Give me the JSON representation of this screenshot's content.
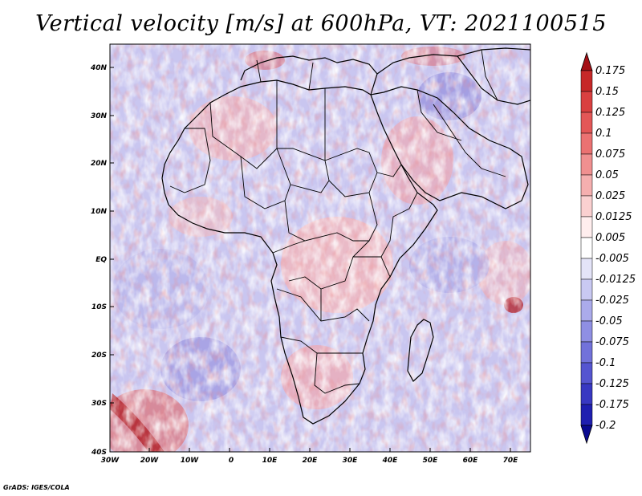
{
  "title": "Vertical velocity [m/s] at 600hPa, VT: 2021100515",
  "credit": "GrADS: IGES/COLA",
  "map": {
    "lat_labels": [
      "40N",
      "30N",
      "20N",
      "10N",
      "EQ",
      "10S",
      "20S",
      "30S",
      "40S"
    ],
    "lon_labels": [
      "30W",
      "20W",
      "10W",
      "0",
      "10E",
      "20E",
      "30E",
      "40E",
      "50E",
      "60E",
      "70E"
    ],
    "background_color": "#c9c6f0"
  },
  "colorbar": {
    "labels": [
      "0.175",
      "0.15",
      "0.125",
      "0.1",
      "0.075",
      "0.05",
      "0.025",
      "0.0125",
      "0.005",
      "-0.005",
      "-0.0125",
      "-0.025",
      "-0.05",
      "-0.075",
      "-0.1",
      "-0.125",
      "-0.175",
      "-0.2"
    ],
    "colors": [
      "#a50f15",
      "#c62828",
      "#d94040",
      "#e35757",
      "#eb7272",
      "#f09090",
      "#f5afaf",
      "#fad0d0",
      "#ffeeee",
      "#ffffff",
      "#e4e4f8",
      "#c9c9f2",
      "#ababeb",
      "#8f8fe3",
      "#7272da",
      "#5555d0",
      "#3838c2",
      "#1f1fb0",
      "#0a0a90"
    ]
  }
}
